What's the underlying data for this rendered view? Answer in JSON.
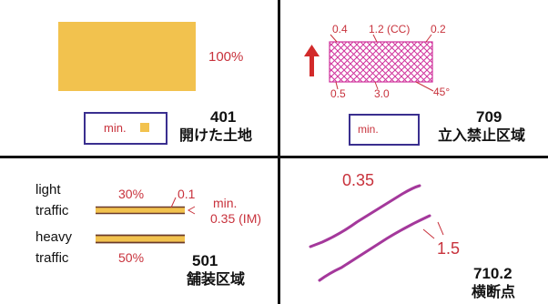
{
  "colors": {
    "red": "#c8323c",
    "orange": "#f2c24e",
    "purple": "#a4389b",
    "hatch": "#d0329c",
    "box_border": "#3a2f8f",
    "grid": "#111111"
  },
  "q401": {
    "percent": "100%",
    "legend_label": "min.",
    "code": "401",
    "name": "開けた土地"
  },
  "q709": {
    "top_left": "0.4",
    "top_mid": "1.2 (CC)",
    "top_right": "0.2",
    "bottom_left": "0.5",
    "bottom_mid": "3.0",
    "angle": "45°",
    "legend_label": "min.",
    "code": "709",
    "name": "立入禁止区域"
  },
  "q501": {
    "light_1": "light",
    "light_2": "traffic",
    "heavy_1": "heavy",
    "heavy_2": "traffic",
    "pct_top": "30%",
    "width_top": "0.1",
    "min_1": "min.",
    "min_2": "0.35 (IM)",
    "pct_bottom": "50%",
    "code": "501",
    "name": "舗装区域"
  },
  "q7102": {
    "top_value": "0.35",
    "side_value": "1.5",
    "code": "710.2",
    "name": "横断点"
  }
}
